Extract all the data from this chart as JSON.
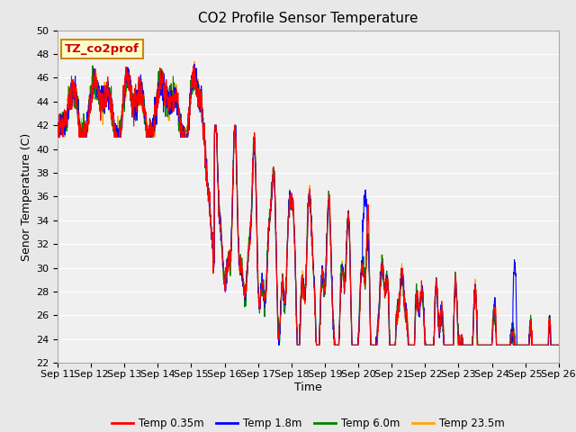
{
  "title": "CO2 Profile Sensor Temperature",
  "xlabel": "Time",
  "ylabel": "Senor Temperature (C)",
  "ylim": [
    22,
    50
  ],
  "yticks": [
    22,
    24,
    26,
    28,
    30,
    32,
    34,
    36,
    38,
    40,
    42,
    44,
    46,
    48,
    50
  ],
  "x_tick_labels": [
    "Sep 11",
    "Sep 12",
    "Sep 13",
    "Sep 14",
    "Sep 15",
    "Sep 16",
    "Sep 17",
    "Sep 18",
    "Sep 19",
    "Sep 20",
    "Sep 21",
    "Sep 22",
    "Sep 23",
    "Sep 24",
    "Sep 25",
    "Sep 26"
  ],
  "colors": {
    "temp035": "#ff0000",
    "temp18": "#0000ff",
    "temp60": "#008000",
    "temp235": "#ffa500"
  },
  "legend_labels": [
    "Temp 0.35m",
    "Temp 1.8m",
    "Temp 6.0m",
    "Temp 23.5m"
  ],
  "annotation_text": "TZ_co2prof",
  "annotation_color": "#cc0000",
  "annotation_bg": "#ffffcc",
  "annotation_border": "#cc8800",
  "bg_color": "#e8e8e8",
  "plot_bg": "#f0f0f0",
  "grid_color": "#ffffff",
  "title_fontsize": 11,
  "axis_fontsize": 9,
  "tick_fontsize": 8,
  "line_width": 0.8
}
